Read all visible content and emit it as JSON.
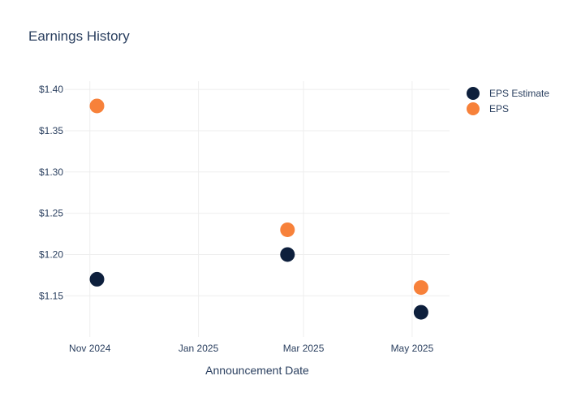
{
  "chart_data": {
    "type": "scatter",
    "title": "Earnings History",
    "xlabel": "Announcement Date",
    "ylabel": "",
    "x_ticks": [
      "Nov 2024",
      "Jan 2025",
      "Mar 2025",
      "May 2025"
    ],
    "x_tick_dates": [
      "2024-11-01",
      "2025-01-01",
      "2025-03-01",
      "2025-05-01"
    ],
    "x_range": [
      "2024-10-18",
      "2025-05-22"
    ],
    "y_ticks": [
      "$1.15",
      "$1.20",
      "$1.25",
      "$1.30",
      "$1.35",
      "$1.40"
    ],
    "y_tick_values": [
      1.15,
      1.2,
      1.25,
      1.3,
      1.35,
      1.4
    ],
    "ylim": [
      1.105,
      1.41
    ],
    "grid": true,
    "legend_position": "right",
    "series": [
      {
        "name": "EPS Estimate",
        "color": "#0d1f3c",
        "x": [
          "2024-11-05",
          "2025-02-20",
          "2025-05-06"
        ],
        "y": [
          1.17,
          1.2,
          1.13
        ]
      },
      {
        "name": "EPS",
        "color": "#f7813a",
        "x": [
          "2024-11-05",
          "2025-02-20",
          "2025-05-06"
        ],
        "y": [
          1.38,
          1.23,
          1.16
        ]
      }
    ]
  }
}
